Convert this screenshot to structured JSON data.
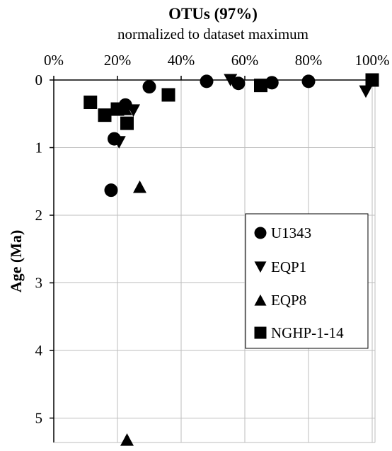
{
  "chart_data": {
    "type": "scatter",
    "title": "OTUs (97%)",
    "subtitle": "normalized to dataset maximum",
    "xlabel": "",
    "ylabel": "Age (Ma)",
    "xlim": [
      0,
      100
    ],
    "ylim": [
      0,
      5.3
    ],
    "x_axis_position": "top",
    "y_axis_inverted": true,
    "x_ticks": [
      0,
      20,
      40,
      60,
      80,
      100
    ],
    "x_tick_labels": [
      "0%",
      "20%",
      "40%",
      "60%",
      "80%",
      "100%"
    ],
    "y_ticks": [
      0,
      1,
      2,
      3,
      4,
      5
    ],
    "y_tick_labels": [
      "0",
      "1",
      "2",
      "3",
      "4",
      "5"
    ],
    "grid": true,
    "legend_position": "right-middle",
    "series": [
      {
        "name": "U1343",
        "marker": "circle",
        "color": "#000000",
        "points": [
          {
            "x": 22.5,
            "y": 0.37
          },
          {
            "x": 19.0,
            "y": 0.87
          },
          {
            "x": 18.0,
            "y": 1.63
          },
          {
            "x": 30.0,
            "y": 0.1
          },
          {
            "x": 48.0,
            "y": 0.02
          },
          {
            "x": 58.0,
            "y": 0.05
          },
          {
            "x": 68.5,
            "y": 0.04
          },
          {
            "x": 80.0,
            "y": 0.02
          }
        ]
      },
      {
        "name": "EQP1",
        "marker": "triangle-down",
        "color": "#000000",
        "points": [
          {
            "x": 25.0,
            "y": 0.45
          },
          {
            "x": 20.5,
            "y": 0.92
          },
          {
            "x": 55.5,
            "y": 0.0
          },
          {
            "x": 98.0,
            "y": 0.17
          }
        ]
      },
      {
        "name": "EQP8",
        "marker": "triangle-up",
        "color": "#000000",
        "points": [
          {
            "x": 22.5,
            "y": 0.43
          },
          {
            "x": 27.0,
            "y": 1.58
          },
          {
            "x": 23.0,
            "y": 5.32
          }
        ]
      },
      {
        "name": "NGHP-1-14",
        "marker": "square",
        "color": "#000000",
        "points": [
          {
            "x": 11.5,
            "y": 0.33
          },
          {
            "x": 16.0,
            "y": 0.52
          },
          {
            "x": 20.0,
            "y": 0.43
          },
          {
            "x": 23.0,
            "y": 0.64
          },
          {
            "x": 36.0,
            "y": 0.22
          },
          {
            "x": 65.0,
            "y": 0.08
          },
          {
            "x": 100.0,
            "y": 0.0
          }
        ]
      }
    ]
  }
}
